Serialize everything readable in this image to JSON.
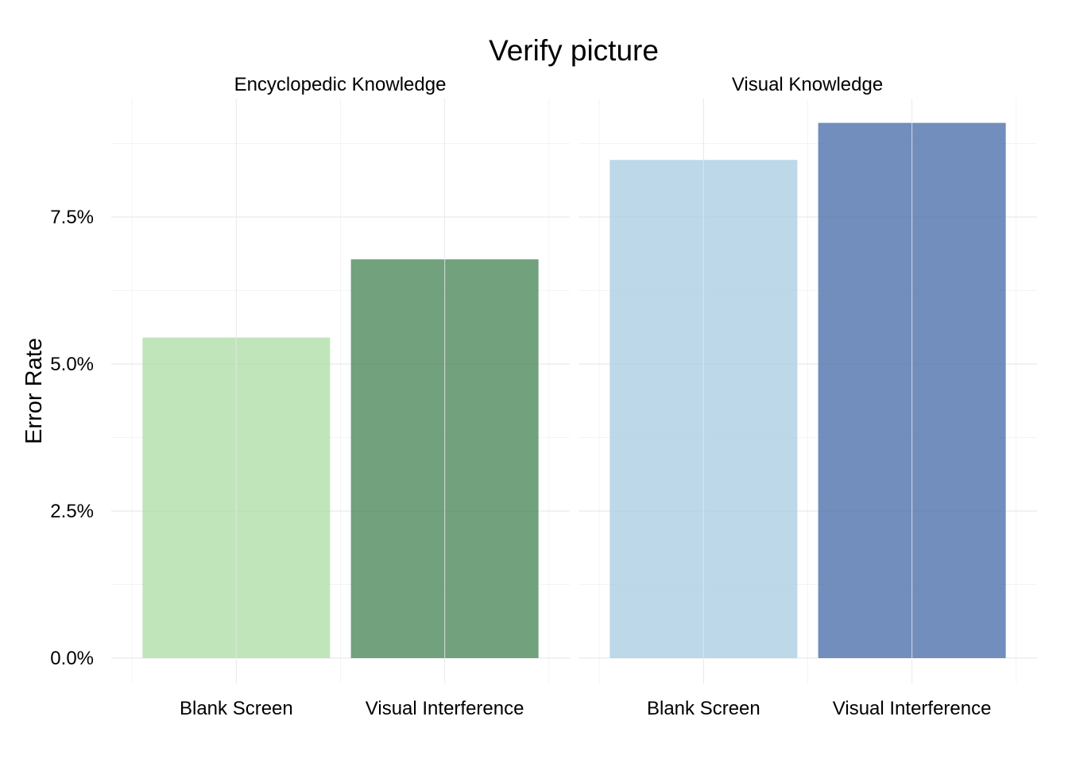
{
  "chart_data": {
    "type": "bar",
    "title": "Verify picture",
    "ylabel": "Error Rate",
    "xlabel": "",
    "ylim": [
      0,
      0.09
    ],
    "yticks": [
      0.0,
      0.025,
      0.05,
      0.075
    ],
    "ytick_labels": [
      "0.0%",
      "2.5%",
      "5.0%",
      "7.5%"
    ],
    "grid": true,
    "facets": [
      {
        "label": "Encyclopedic Knowledge",
        "categories": [
          "Blank Screen",
          "Visual Interference"
        ],
        "values": [
          0.0545,
          0.0678
        ],
        "colors": [
          "#b0dea8",
          "#4a8758"
        ]
      },
      {
        "label": "Visual Knowledge",
        "categories": [
          "Blank Screen",
          "Visual Interference"
        ],
        "values": [
          0.0847,
          0.091
        ],
        "colors": [
          "#aacde3",
          "#4a6ea9"
        ]
      }
    ]
  }
}
